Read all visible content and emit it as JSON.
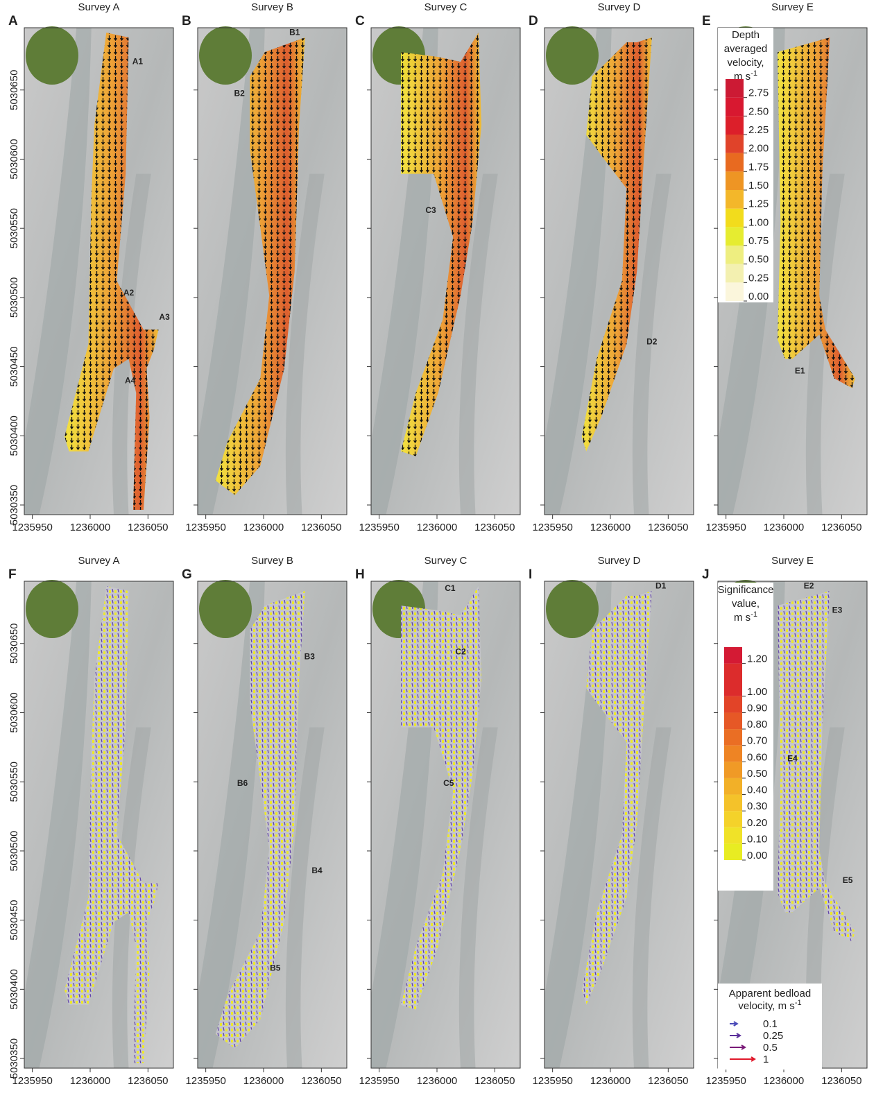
{
  "axes": {
    "xlim": [
      1235943,
      1236072
    ],
    "ylim": [
      5030343,
      5030695
    ],
    "xticks": [
      1235950,
      1236000,
      1236050
    ],
    "yticks": [
      5030350,
      5030400,
      5030450,
      5030500,
      5030550,
      5030600,
      5030650
    ]
  },
  "panels": [
    {
      "letter": "A",
      "title": "Survey A",
      "labels": [
        "A1",
        "A2",
        "A3",
        "A4"
      ]
    },
    {
      "letter": "B",
      "title": "Survey B",
      "labels": [
        "B1",
        "B2"
      ]
    },
    {
      "letter": "C",
      "title": "Survey C",
      "labels": [
        "C3"
      ]
    },
    {
      "letter": "D",
      "title": "Survey D",
      "labels": [
        "D2"
      ]
    },
    {
      "letter": "E",
      "title": "Survey E",
      "labels": [
        "E1"
      ]
    },
    {
      "letter": "F",
      "title": "Survey A",
      "labels": []
    },
    {
      "letter": "G",
      "title": "Survey B",
      "labels": [
        "B3",
        "B6",
        "B4",
        "B5"
      ]
    },
    {
      "letter": "H",
      "title": "Survey C",
      "labels": [
        "C1",
        "C2",
        "C5"
      ]
    },
    {
      "letter": "I",
      "title": "Survey D",
      "labels": [
        "D1"
      ]
    },
    {
      "letter": "J",
      "title": "Survey E",
      "labels": [
        "E2",
        "E3",
        "E4",
        "E5"
      ]
    }
  ],
  "depth_legend": {
    "title_lines": [
      "Depth",
      "averaged",
      "velocity,"
    ],
    "unit": "m s",
    "unit_exp": "-1",
    "clim": [
      0,
      3
    ],
    "ticks": [
      {
        "value": 0,
        "label": "0.00"
      },
      {
        "value": 0.25,
        "label": "0.25"
      },
      {
        "value": 0.5,
        "label": "0.50"
      },
      {
        "value": 0.75,
        "label": "0.75"
      },
      {
        "value": 1,
        "label": "1.00"
      },
      {
        "value": 1.25,
        "label": "1.25"
      },
      {
        "value": 1.5,
        "label": "1.50"
      },
      {
        "value": 1.75,
        "label": "1.75"
      },
      {
        "value": 2,
        "label": "2.00"
      },
      {
        "value": 2.25,
        "label": "2.25"
      },
      {
        "value": 2.5,
        "label": "2.50"
      },
      {
        "value": 2.75,
        "label": "2.75"
      }
    ],
    "colors": [
      "#fbf6dc",
      "#f3f0b0",
      "#eeee80",
      "#e6ec30",
      "#f2dc1c",
      "#f3b72a",
      "#ee9524",
      "#e86a20",
      "#e0432a",
      "#dc1f2a",
      "#d81830",
      "#cc1a34"
    ]
  },
  "significance_legend": {
    "title_lines": [
      "Significance",
      "value,"
    ],
    "unit": "m s",
    "unit_exp": "-1",
    "clim": [
      0,
      1.3
    ],
    "ticks": [
      {
        "value": 0,
        "label": "0.00"
      },
      {
        "value": 0.1,
        "label": "0.10"
      },
      {
        "value": 0.2,
        "label": "0.20"
      },
      {
        "value": 0.3,
        "label": "0.30"
      },
      {
        "value": 0.4,
        "label": "0.40"
      },
      {
        "value": 0.5,
        "label": "0.50"
      },
      {
        "value": 0.6,
        "label": "0.60"
      },
      {
        "value": 0.7,
        "label": "0.70"
      },
      {
        "value": 0.8,
        "label": "0.80"
      },
      {
        "value": 0.9,
        "label": "0.90"
      },
      {
        "value": 1,
        "label": "1.00"
      },
      {
        "value": 1.2,
        "label": "1.20"
      }
    ],
    "colors": [
      "#e8ec22",
      "#f0e228",
      "#f4d22a",
      "#f4c22a",
      "#f2b028",
      "#f09a26",
      "#ee8424",
      "#ea6e24",
      "#e65826",
      "#e24428",
      "#dc2c2c",
      "#d41a34"
    ]
  },
  "bedload_legend": {
    "title_lines": [
      "Apparent bedload",
      "velocity, m s"
    ],
    "unit_exp": "-1",
    "entries": [
      {
        "value": 0.1,
        "color": "#4a4ab8"
      },
      {
        "value": 0.25,
        "color": "#5a2f9a"
      },
      {
        "value": 0.5,
        "color": "#7a1a78"
      },
      {
        "value": 1,
        "color": "#e0182a"
      }
    ]
  }
}
